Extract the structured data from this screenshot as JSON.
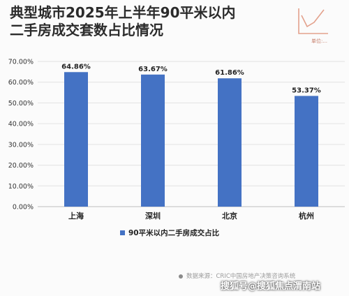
{
  "title": {
    "line1": "典型城市2025年上半年90平米以内",
    "line2": "二手房成交套数占比情况"
  },
  "unit_label": "单位:...",
  "chart_data": {
    "type": "bar",
    "categories": [
      "上海",
      "深圳",
      "北京",
      "杭州"
    ],
    "series": [
      {
        "name": "90平米以内二手房成交占比",
        "values": [
          64.86,
          63.67,
          61.86,
          53.37
        ],
        "color": "#4472c4"
      }
    ],
    "data_labels": [
      "64.86%",
      "63.67%",
      "61.86%",
      "53.37%"
    ],
    "ylim": [
      0,
      70
    ],
    "y_ticks": [
      "0.00%",
      "10.00%",
      "20.00%",
      "30.00%",
      "40.00%",
      "50.00%",
      "60.00%",
      "70.00%"
    ],
    "grid": true,
    "legend": "bottom"
  },
  "source": "数据来源：CRIC中国房地产决策咨询系统",
  "watermark": "搜狐号@搜狐焦点渭南站",
  "colors": {
    "bar": "#4472c4",
    "accent": "#d9886f"
  }
}
